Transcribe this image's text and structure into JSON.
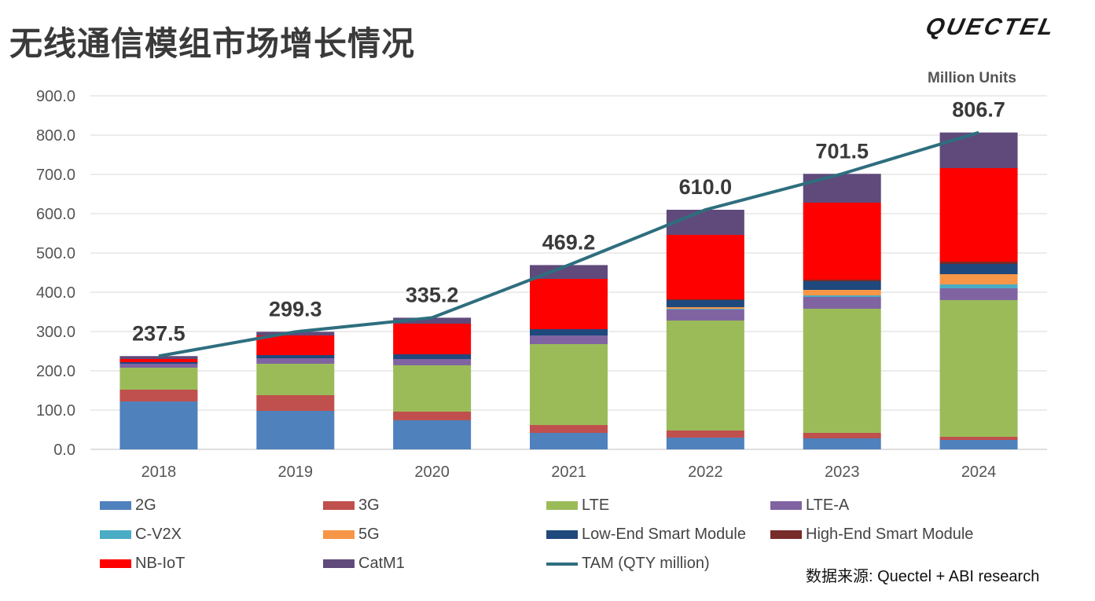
{
  "page": {
    "title": "无线通信模组市场增长情况",
    "logo_text": "QUECTEL",
    "source_prefix": "数据来源",
    "source_text": ": Quectel + ABI  research"
  },
  "chart_data": {
    "type": "bar",
    "stacked": true,
    "title": "",
    "units_label": "Million Units",
    "xlabel": "",
    "ylabel": "",
    "ylim": [
      0,
      900
    ],
    "yticks": [
      0,
      100,
      200,
      300,
      400,
      500,
      600,
      700,
      800,
      900
    ],
    "ytick_labels": [
      "0.0",
      "100.0",
      "200.0",
      "300.0",
      "400.0",
      "500.0",
      "600.0",
      "700.0",
      "800.0",
      "900.0"
    ],
    "grid": true,
    "legend_position": "bottom",
    "categories": [
      "2018",
      "2019",
      "2020",
      "2021",
      "2022",
      "2023",
      "2024"
    ],
    "series": [
      {
        "name": "2G",
        "color": "#4F81BD",
        "values": [
          122,
          98,
          74,
          42,
          30,
          28,
          24
        ]
      },
      {
        "name": "3G",
        "color": "#C0504D",
        "values": [
          30,
          40,
          22,
          20,
          18,
          14,
          8
        ]
      },
      {
        "name": "LTE",
        "color": "#9BBB59",
        "values": [
          56,
          80,
          118,
          206,
          280,
          316,
          348
        ]
      },
      {
        "name": "LTE-A",
        "color": "#8064A2",
        "values": [
          10,
          14,
          16,
          22,
          28,
          30,
          30
        ]
      },
      {
        "name": "C-V2X",
        "color": "#4BACC6",
        "values": [
          0,
          0,
          0,
          0,
          2,
          4,
          10
        ]
      },
      {
        "name": "5G",
        "color": "#F79646",
        "values": [
          0,
          0,
          0,
          0,
          4,
          14,
          26
        ]
      },
      {
        "name": "Low-End Smart Module",
        "color": "#1F497D",
        "values": [
          4,
          8,
          12,
          16,
          18,
          22,
          26
        ]
      },
      {
        "name": "High-End Smart Module",
        "color": "#772C2A",
        "values": [
          0,
          0,
          0,
          0,
          2,
          4,
          6
        ]
      },
      {
        "name": "NB-IoT",
        "color": "#FF0000",
        "values": [
          8,
          50,
          78,
          128,
          164,
          196,
          238
        ]
      },
      {
        "name": "CatM1",
        "color": "#604A7B",
        "values": [
          7.5,
          9.3,
          15.2,
          35.2,
          64,
          73.5,
          90.7
        ]
      }
    ],
    "line_series": {
      "name": "TAM (QTY million)",
      "color": "#2E6E7E",
      "values": [
        237.5,
        299.3,
        335.2,
        469.2,
        610.0,
        701.5,
        806.7
      ]
    },
    "total_labels": [
      "237.5",
      "299.3",
      "335.2",
      "469.2",
      "610.0",
      "701.5",
      "806.7"
    ]
  }
}
